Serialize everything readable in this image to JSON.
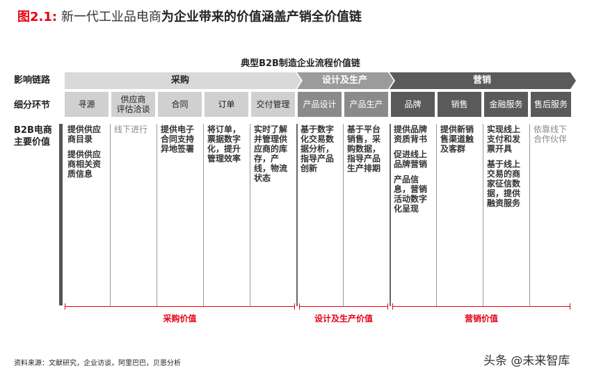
{
  "header": {
    "figure_num": "图2.1:",
    "title_part1": "新一代工业品电商",
    "title_part2": "为企业带来的价值涵盖产销全价值链"
  },
  "subtitle": "典型B2B制造企业流程价值链",
  "row_labels": {
    "chain": "影响链路",
    "steps": "细分环节",
    "value_line1": "B2B电商",
    "value_line2": "主要价值"
  },
  "stages": {
    "procurement": "采购",
    "design": "设计及生产",
    "marketing": "营销"
  },
  "steps": [
    {
      "label": "寻源"
    },
    {
      "label": "供应商\n评估洽谈"
    },
    {
      "label": "合同"
    },
    {
      "label": "订单"
    },
    {
      "label": "交付管理"
    },
    {
      "label": "产品设计"
    },
    {
      "label": "产品生产"
    },
    {
      "label": "品牌"
    },
    {
      "label": "销售"
    },
    {
      "label": "金融服务"
    },
    {
      "label": "售后服务"
    }
  ],
  "values": [
    [
      "提供供应商目录",
      "提供供应商相关资质信息"
    ],
    [
      "线下进行"
    ],
    [
      "提供电子合同支持异地签署"
    ],
    [
      "将订单，票据数字化，提升管理效率"
    ],
    [
      "实时了解并管理供应商的库存，产线，物流状态"
    ],
    [
      "基于数字化交易数据分析，指导产品创新"
    ],
    [
      "基于平台销售，采购数据，指导产品生产排期"
    ],
    [
      "提供品牌资质背书",
      "促进线上品牌营销",
      "产品信息，营销活动数字化呈现"
    ],
    [
      "提供新销售渠道触及客群"
    ],
    [
      "实现线上支付和发票开具",
      "基于线上交易的商家征信数据，提供融资服务"
    ],
    [
      "依靠线下合作伙伴"
    ]
  ],
  "value_labels": {
    "procurement": "采购价值",
    "design": "设计及生产价值",
    "marketing": "营销价值"
  },
  "source": "资料来源：文献研究，企业访谈，阿里巴巴，贝恩分析",
  "watermark": "头条 @未来智库",
  "colors": {
    "accent_red": "#e60012",
    "chevron_light": "#d9d9d9",
    "chevron_mid": "#9b9b9b",
    "chevron_dark": "#5a5a5a"
  }
}
